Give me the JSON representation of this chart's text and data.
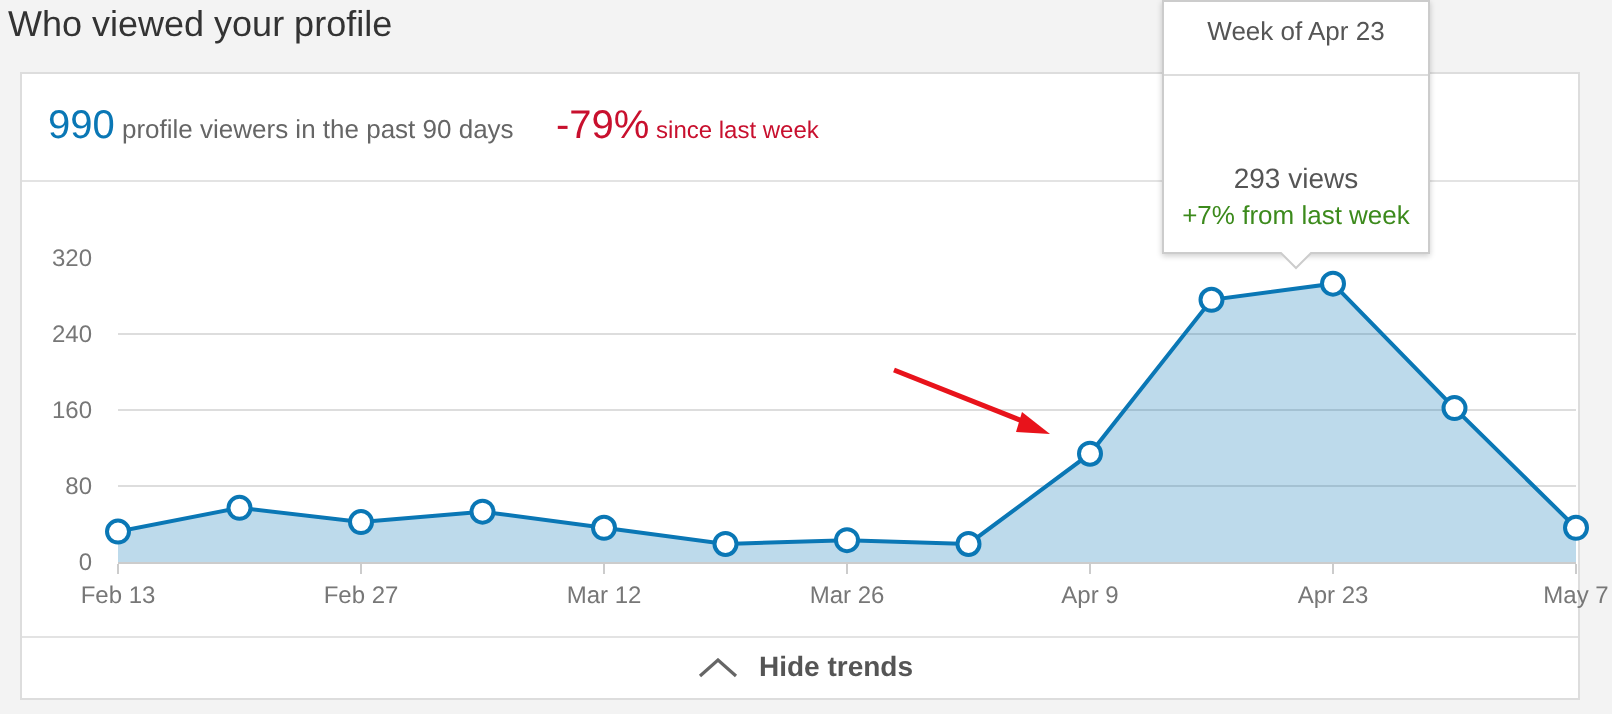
{
  "chart_data": {
    "type": "area",
    "title": "Who viewed your profile",
    "subtitle": "990 profile viewers in the past 90 days",
    "annotations": [
      "-79% since last week",
      "Week of Apr 23",
      "293 views",
      "+7% from last week",
      "Hide trends"
    ],
    "categories": [
      "Feb 13",
      null,
      "Feb 27",
      null,
      "Mar 12",
      null,
      "Mar 26",
      null,
      "Apr 9",
      null,
      "Apr 23",
      null,
      "May 7"
    ],
    "series": [
      {
        "color": "#0a77b5",
        "values": [
          32,
          57,
          42,
          53,
          36,
          19,
          23,
          19,
          114,
          276,
          293,
          162,
          36
        ]
      }
    ],
    "ylim": [
      0,
      320
    ],
    "yticks": [
      0,
      80,
      160,
      240,
      320
    ],
    "grid": "y",
    "marker": "circle",
    "line_style": "solid"
  }
}
